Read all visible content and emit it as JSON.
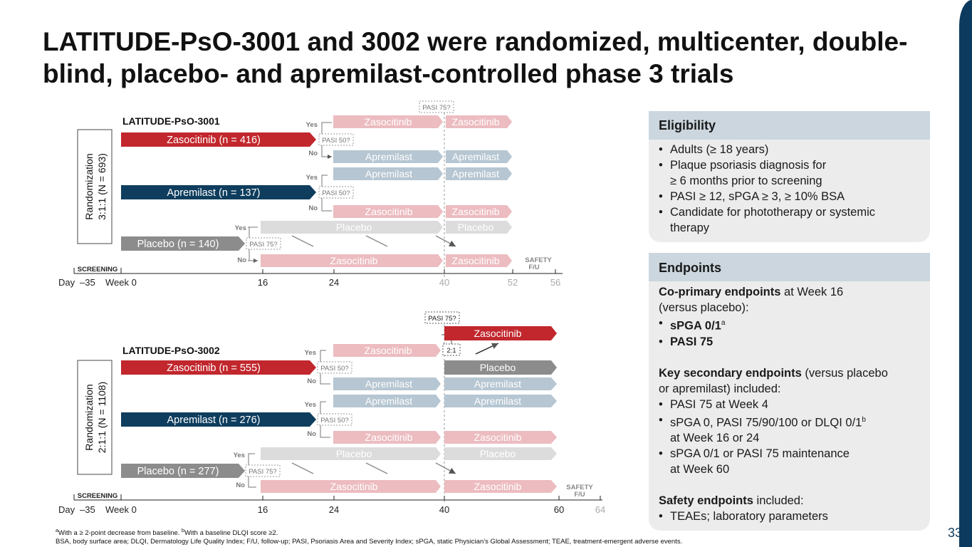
{
  "title": "LATITUDE-PsO-3001 and 3002 were randomized, multicenter, double-blind, placebo- and apremilast-controlled phase 3 trials",
  "colors": {
    "zasocitinib": "#c1272d",
    "zasocitinib_light": "#ecbcc0",
    "apremilast": "#0e3d5e",
    "apremilast_light": "#b6c6d2",
    "placebo": "#8c8c8c",
    "placebo_light": "#dcdcdc",
    "panel_head": "#cbd6de",
    "panel_bg": "#ececec"
  },
  "trial1": {
    "name": "LATITUDE-PsO-3001",
    "randomization_line1": "Randomization",
    "randomization_line2": "3:1:1 (N = 693)",
    "arms": {
      "zaso": "Zasocitinib (n = 416)",
      "apre": "Apremilast (n = 137)",
      "placebo": "Placebo (n = 140)"
    },
    "decisions": {
      "pasi50_a": "PASI 50?",
      "pasi50_b": "PASI 50?",
      "pasi75_placebo": "PASI 75?",
      "pasi75_top": "PASI 75?"
    },
    "yes": "Yes",
    "no": "No",
    "bars": {
      "b1": "Zasocitinib",
      "b2": "Zasocitinib",
      "b3": "Apremilast",
      "b4": "Apremilast",
      "b5": "Apremilast",
      "b6": "Apremilast",
      "b7": "Zasocitinib",
      "b8": "Zasocitinib",
      "b9": "Placebo",
      "b10": "Placebo",
      "b11": "Zasocitinib",
      "b12": "Zasocitinib"
    },
    "safety_line1": "SAFETY",
    "safety_line2": "F/U",
    "screening": "SCREENING",
    "axis": {
      "day": "Day",
      "d35": "–35",
      "week": "Week 0",
      "t16": "16",
      "t24": "24",
      "t40": "40",
      "t52": "52",
      "t56": "56"
    }
  },
  "trial2": {
    "name": "LATITUDE-PsO-3002",
    "randomization_line1": "Randomization",
    "randomization_line2": "2:1:1 (N = 1108)",
    "arms": {
      "zaso": "Zasocitinib (n = 555)",
      "apre": "Apremilast (n = 276)",
      "placebo": "Placebo (n = 277)"
    },
    "decisions": {
      "pasi50_a": "PASI 50?",
      "pasi50_b": "PASI 50?",
      "pasi75_placebo": "PASI 75?",
      "pasi75_top": "PASI 75?",
      "ratio": "2:1"
    },
    "yes": "Yes",
    "no": "No",
    "bars": {
      "b1": "Zasocitinib",
      "b2": "Zasocitinib",
      "b3": "Placebo",
      "b4": "Apremilast",
      "b5": "Apremilast",
      "b6": "Apremilast",
      "b7": "Apremilast",
      "b8": "Zasocitinib",
      "b9": "Zasocitinib",
      "b10": "Placebo",
      "b11": "Placebo",
      "b12": "Zasocitinib",
      "b13": "Zasocitinib"
    },
    "safety_line1": "SAFETY",
    "safety_line2": "F/U",
    "screening": "SCREENING",
    "axis": {
      "day": "Day",
      "d35": "–35",
      "week": "Week 0",
      "t16": "16",
      "t24": "24",
      "t40": "40",
      "t60": "60",
      "t64": "64"
    }
  },
  "eligibility": {
    "heading": "Eligibility",
    "items": [
      "Adults (≥ 18 years)",
      "Plaque psoriasis diagnosis for",
      "≥ 6 months prior to screening",
      "PASI ≥ 12, sPGA ≥ 3, ≥ 10% BSA",
      "Candidate for phototherapy or systemic",
      "therapy"
    ]
  },
  "endpoints": {
    "heading": "Endpoints",
    "primary_bold": "Co-primary endpoints",
    "primary_rest": " at Week 16",
    "primary_line2": "(versus placebo):",
    "primary_item1": "sPGA 0/1",
    "primary_item1_sup": "a",
    "primary_item2": "PASI 75",
    "secondary_bold": "Key secondary endpoints",
    "secondary_rest": " (versus placebo",
    "secondary_line2": "or apremilast) included:",
    "secondary_item1": "PASI 75 at Week 4",
    "secondary_item2": "sPGA 0, PASI 75/90/100 or DLQI 0/1",
    "secondary_item2_sup": "b",
    "secondary_item2_cont": "at Week 16 or 24",
    "secondary_item3": "sPGA 0/1 or PASI 75 maintenance",
    "secondary_item3_cont": "at Week 60",
    "safety_bold": "Safety endpoints",
    "safety_rest": " included:",
    "safety_item": "TEAEs; laboratory parameters"
  },
  "footnote": {
    "sup_a": "a",
    "line1a": "With a ≥ 2-point decrease from baseline. ",
    "sup_b": "b",
    "line1b": "With a baseline DLQI score ≥2.",
    "line2": "BSA, body surface area; DLQI, Dermatology Life Quality Index; F/U, follow-up; PASI, Psoriasis Area and Severity Index; sPGA, static Physician’s Global Assessment; TEAE, treatment-emergent adverse events."
  },
  "page_number": "33"
}
